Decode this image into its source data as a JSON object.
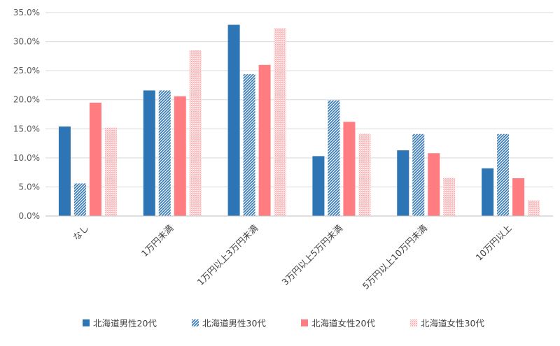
{
  "chart_data": {
    "type": "bar",
    "title": "",
    "xlabel": "",
    "ylabel": "",
    "ylim": [
      0,
      35
    ],
    "ytick_step": 5,
    "ytick_labels": [
      "0.0%",
      "5.0%",
      "10.0%",
      "15.0%",
      "20.0%",
      "25.0%",
      "30.0%",
      "35.0%"
    ],
    "grid": true,
    "legend_position": "bottom",
    "categories": [
      "なし",
      "1万円未満",
      "1万円以上3万円未満",
      "3万円以上5万円未満",
      "5万円以上10万円未満",
      "10万円以上"
    ],
    "series": [
      {
        "name": "北海道男性20代",
        "values": [
          15.4,
          21.6,
          32.9,
          10.3,
          11.3,
          8.2
        ],
        "color": "#2E75B6",
        "pattern": "solid"
      },
      {
        "name": "北海道男性30代",
        "values": [
          5.6,
          21.6,
          24.4,
          19.9,
          14.1,
          14.1
        ],
        "color": "#2E75B6",
        "pattern": "hatch"
      },
      {
        "name": "北海道女性20代",
        "values": [
          19.5,
          20.6,
          26.0,
          16.2,
          10.8,
          6.5
        ],
        "color": "#FF7C80",
        "pattern": "solid"
      },
      {
        "name": "北海道女性30代",
        "values": [
          15.2,
          28.5,
          32.3,
          14.2,
          6.6,
          2.7
        ],
        "color": "#FF9A9C",
        "pattern": "dots"
      }
    ]
  }
}
